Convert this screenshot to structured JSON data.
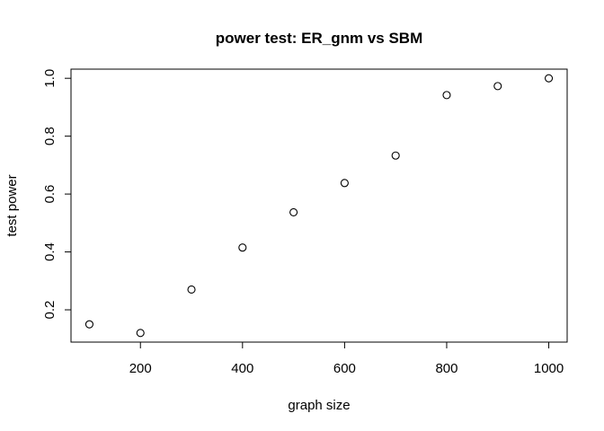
{
  "chart_data": {
    "type": "scatter",
    "title": "power test: ER_gnm vs SBM",
    "xlabel": "graph size",
    "ylabel": "test power",
    "x": [
      100,
      200,
      300,
      400,
      500,
      600,
      700,
      800,
      900,
      1000
    ],
    "y": [
      0.15,
      0.12,
      0.27,
      0.415,
      0.537,
      0.638,
      0.733,
      0.942,
      0.973,
      1.0
    ],
    "xlim": [
      64,
      1036
    ],
    "ylim": [
      0.0884,
      1.0316
    ],
    "xticks": [
      200,
      400,
      600,
      800,
      1000
    ],
    "xtick_labels": [
      "200",
      "400",
      "600",
      "800",
      "1000"
    ],
    "yticks": [
      0.2,
      0.4,
      0.6,
      0.8,
      1.0
    ],
    "ytick_labels": [
      "0.2",
      "0.4",
      "0.6",
      "0.8",
      "1.0"
    ],
    "grid": false,
    "legend": "none",
    "marker": "open-circle",
    "colors": {
      "marker": "#000000",
      "axes": "#000000",
      "background": "#ffffff"
    }
  }
}
